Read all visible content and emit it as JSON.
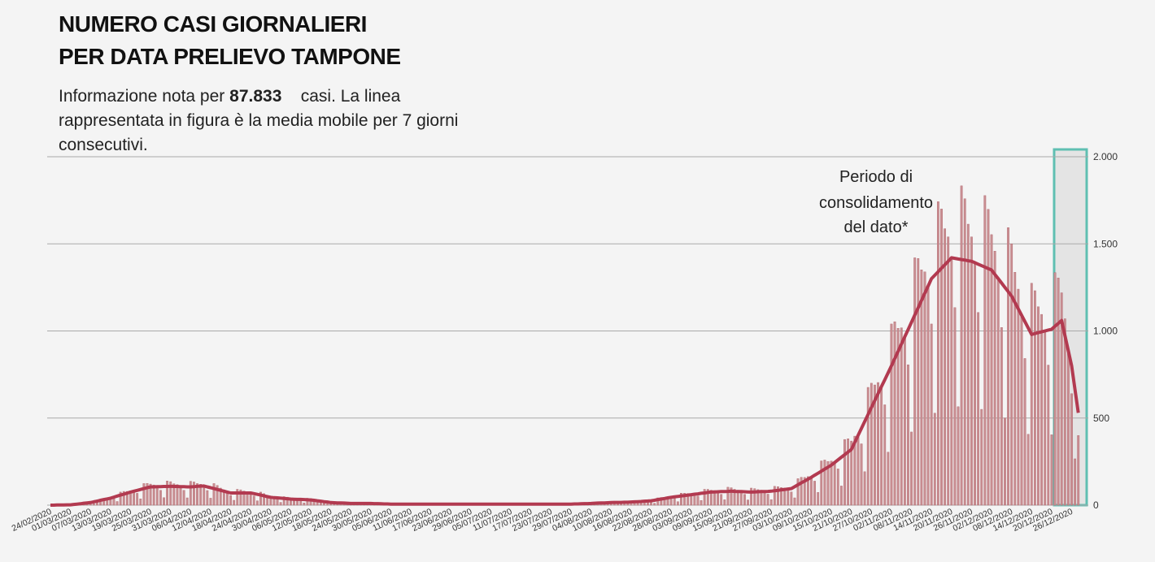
{
  "chart_data": {
    "type": "bar",
    "title": [
      "NUMERO CASI GIORNALIERI",
      "PER DATA PRELIEVO TAMPONE"
    ],
    "subtitle": {
      "prefix": "Informazione nota per",
      "total": "87.833",
      "suffix": "casi. La linea rappresentata in figura è la media mobile per 7 giorni consecutivi."
    },
    "annotation": [
      "Periodo di",
      "consolidamento",
      "del dato*"
    ],
    "categories": [
      "24/02/2020",
      null,
      null,
      null,
      null,
      null,
      "01/03/2020",
      null,
      null,
      null,
      null,
      null,
      "07/03/2020",
      null,
      null,
      null,
      null,
      null,
      "13/03/2020",
      null,
      null,
      null,
      null,
      null,
      "19/03/2020",
      null,
      null,
      null,
      null,
      null,
      "25/03/2020",
      null,
      null,
      null,
      null,
      null,
      "31/03/2020",
      null,
      null,
      null,
      null,
      null,
      "06/04/2020",
      null,
      null,
      null,
      null,
      null,
      "12/04/2020",
      null,
      null,
      null,
      null,
      null,
      "18/04/2020",
      null,
      null,
      null,
      null,
      null,
      "24/04/2020",
      null,
      null,
      null,
      null,
      null,
      "30/04/2020",
      null,
      null,
      null,
      null,
      null,
      "06/05/2020",
      null,
      null,
      null,
      null,
      null,
      "12/05/2020",
      null,
      null,
      null,
      null,
      null,
      "18/05/2020",
      null,
      null,
      null,
      null,
      null,
      "24/05/2020",
      null,
      null,
      null,
      null,
      null,
      "30/05/2020",
      null,
      null,
      null,
      null,
      null,
      "05/06/2020",
      null,
      null,
      null,
      null,
      null,
      "11/06/2020",
      null,
      null,
      null,
      null,
      null,
      "17/06/2020",
      null,
      null,
      null,
      null,
      null,
      "23/06/2020",
      null,
      null,
      null,
      null,
      null,
      "29/06/2020",
      null,
      null,
      null,
      null,
      null,
      "05/07/2020",
      null,
      null,
      null,
      null,
      null,
      "11/07/2020",
      null,
      null,
      null,
      null,
      null,
      "17/07/2020",
      null,
      null,
      null,
      null,
      null,
      "23/07/2020",
      null,
      null,
      null,
      null,
      null,
      "29/07/2020",
      null,
      null,
      null,
      null,
      null,
      "04/08/2020",
      null,
      null,
      null,
      null,
      null,
      "10/08/2020",
      null,
      null,
      null,
      null,
      null,
      "16/08/2020",
      null,
      null,
      null,
      null,
      null,
      "22/08/2020",
      null,
      null,
      null,
      null,
      null,
      "28/08/2020",
      null,
      null,
      null,
      null,
      null,
      "03/09/2020",
      null,
      null,
      null,
      null,
      null,
      "09/09/2020",
      null,
      null,
      null,
      null,
      null,
      "15/09/2020",
      null,
      null,
      null,
      null,
      null,
      "21/09/2020",
      null,
      null,
      null,
      null,
      null,
      "27/09/2020",
      null,
      null,
      null,
      null,
      null,
      "03/10/2020",
      null,
      null,
      null,
      null,
      null,
      "09/10/2020",
      null,
      null,
      null,
      null,
      null,
      "15/10/2020",
      null,
      null,
      null,
      null,
      null,
      "21/10/2020",
      null,
      null,
      null,
      null,
      null,
      "27/10/2020",
      null,
      null,
      null,
      null,
      null,
      "02/11/2020",
      null,
      null,
      null,
      null,
      null,
      "08/11/2020",
      null,
      null,
      null,
      null,
      null,
      "14/11/2020",
      null,
      null,
      null,
      null,
      null,
      "20/11/2020",
      null,
      null,
      null,
      null,
      null,
      "26/11/2020",
      null,
      null,
      null,
      null,
      null,
      "02/12/2020",
      null,
      null,
      null,
      null,
      null,
      "08/12/2020",
      null,
      null,
      null,
      null,
      null,
      "14/12/2020",
      null,
      null,
      null,
      null,
      null,
      "20/12/2020",
      null,
      null,
      null,
      null,
      null,
      "26/12/2020",
      null,
      null
    ],
    "series": [
      {
        "type": "bar",
        "color": "#c98e92",
        "values": [
          0,
          0,
          1,
          1,
          1,
          2,
          1,
          5,
          8,
          9,
          12,
          13,
          12,
          8,
          30,
          35,
          37,
          40,
          40,
          37,
          21,
          75,
          79,
          79,
          83,
          80,
          68,
          36,
          124,
          125,
          121,
          116,
          106,
          85,
          43,
          139,
          135,
          123,
          118,
          106,
          85,
          42,
          137,
          133,
          124,
          120,
          110,
          84,
          40,
          124,
          113,
          98,
          88,
          75,
          56,
          28,
          91,
          88,
          81,
          77,
          70,
          53,
          25,
          75,
          66,
          56,
          50,
          43,
          34,
          16,
          49,
          46,
          40,
          37,
          33,
          26,
          13,
          40,
          38,
          32,
          28,
          23,
          16,
          7,
          20,
          18,
          15,
          14,
          12,
          9,
          4,
          13,
          13,
          12,
          11,
          10,
          8,
          4,
          12,
          10,
          8,
          8,
          6,
          5,
          2,
          8,
          8,
          7,
          7,
          6,
          5,
          2,
          8,
          8,
          7,
          7,
          6,
          5,
          2,
          8,
          8,
          7,
          7,
          6,
          5,
          2,
          8,
          8,
          7,
          7,
          6,
          5,
          2,
          8,
          8,
          7,
          7,
          6,
          5,
          2,
          8,
          8,
          7,
          7,
          6,
          5,
          2,
          8,
          8,
          7,
          7,
          6,
          5,
          2,
          8,
          8,
          7,
          8,
          7,
          6,
          4,
          12,
          13,
          13,
          13,
          13,
          10,
          6,
          20,
          20,
          18,
          18,
          17,
          14,
          7,
          25,
          25,
          24,
          25,
          24,
          20,
          11,
          42,
          44,
          44,
          46,
          45,
          38,
          20,
          69,
          69,
          67,
          66,
          63,
          52,
          27,
          91,
          91,
          86,
          84,
          77,
          62,
          31,
          103,
          100,
          91,
          86,
          78,
          62,
          30,
          98,
          95,
          89,
          86,
          78,
          63,
          32,
          108,
          106,
          101,
          99,
          93,
          76,
          42,
          152,
          160,
          159,
          164,
          160,
          138,
          73,
          254,
          259,
          251,
          253,
          245,
          208,
          110,
          377,
          381,
          368,
          396,
          400,
          352,
          192,
          676,
          700,
          690,
          704,
          680,
          576,
          304,
          1040,
          1053,
          1015,
          1018,
          967,
          806,
          420,
          1420,
          1416,
          1351,
          1339,
          1258,
          1040,
          528,
          1742,
          1700,
          1587,
          1540,
          1420,
          1134,
          565,
          1833,
          1759,
          1613,
          1540,
          1392,
          1106,
          550,
          1777,
          1698,
          1553,
          1458,
          1300,
          1020,
          500,
          1593,
          1500,
          1337,
          1240,
          1090,
          842,
          407,
          1274,
          1231,
          1139,
          1095,
          1000,
          804,
          404,
          1335,
          1304,
          1219,
          1070,
          887,
          640,
          266,
          400
        ]
      },
      {
        "type": "line",
        "color": "#b23a50",
        "values": [
          0,
          0,
          1,
          1,
          1,
          2,
          2,
          4,
          6,
          8,
          11,
          13,
          15,
          19,
          23,
          28,
          32,
          36,
          40,
          46,
          52,
          58,
          63,
          69,
          75,
          80,
          85,
          90,
          95,
          100,
          105,
          105,
          106,
          106,
          107,
          107,
          108,
          107,
          107,
          106,
          106,
          105,
          105,
          106,
          108,
          109,
          110,
          105,
          100,
          95,
          90,
          85,
          80,
          75,
          70,
          70,
          70,
          70,
          70,
          70,
          70,
          66,
          62,
          58,
          53,
          49,
          45,
          43,
          42,
          40,
          38,
          37,
          35,
          34,
          33,
          33,
          32,
          31,
          30,
          28,
          25,
          23,
          20,
          18,
          15,
          14,
          13,
          13,
          12,
          11,
          10,
          10,
          10,
          10,
          10,
          10,
          10,
          9,
          9,
          8,
          7,
          7,
          6,
          6,
          6,
          6,
          6,
          6,
          6,
          6,
          6,
          6,
          6,
          6,
          6,
          6,
          6,
          6,
          6,
          6,
          6,
          6,
          6,
          6,
          6,
          6,
          6,
          6,
          6,
          6,
          6,
          6,
          6,
          6,
          6,
          6,
          6,
          6,
          6,
          6,
          6,
          6,
          6,
          6,
          6,
          6,
          6,
          6,
          6,
          6,
          6,
          6,
          6,
          6,
          6,
          6,
          6,
          7,
          7,
          8,
          9,
          9,
          10,
          11,
          12,
          13,
          13,
          14,
          15,
          16,
          16,
          16,
          17,
          17,
          18,
          19,
          20,
          21,
          23,
          24,
          25,
          28,
          32,
          35,
          38,
          42,
          45,
          48,
          50,
          53,
          55,
          58,
          60,
          63,
          65,
          68,
          70,
          73,
          75,
          76,
          77,
          78,
          78,
          79,
          80,
          79,
          78,
          78,
          77,
          76,
          75,
          76,
          77,
          78,
          78,
          79,
          80,
          83,
          85,
          88,
          90,
          93,
          95,
          106,
          117,
          128,
          138,
          149,
          160,
          172,
          183,
          195,
          207,
          218,
          230,
          245,
          260,
          275,
          290,
          305,
          320,
          360,
          400,
          440,
          480,
          520,
          560,
          600,
          640,
          680,
          720,
          760,
          800,
          842,
          883,
          925,
          967,
          1008,
          1050,
          1092,
          1133,
          1175,
          1217,
          1258,
          1300,
          1320,
          1340,
          1360,
          1380,
          1400,
          1420,
          1417,
          1413,
          1410,
          1407,
          1403,
          1400,
          1392,
          1383,
          1375,
          1367,
          1358,
          1350,
          1325,
          1300,
          1275,
          1250,
          1225,
          1200,
          1163,
          1127,
          1090,
          1053,
          1017,
          980,
          985,
          990,
          995,
          1000,
          1005,
          1010,
          1027,
          1043,
          1060,
          973,
          887,
          800,
          665,
          530
        ]
      }
    ],
    "ylim": [
      0,
      2000
    ],
    "yticks": [
      0,
      500,
      {
        "value": 1000,
        "label": "1.000"
      },
      {
        "value": 1500,
        "label": "1.500"
      },
      {
        "value": 2000,
        "label": "2.000"
      }
    ],
    "grid": true
  }
}
